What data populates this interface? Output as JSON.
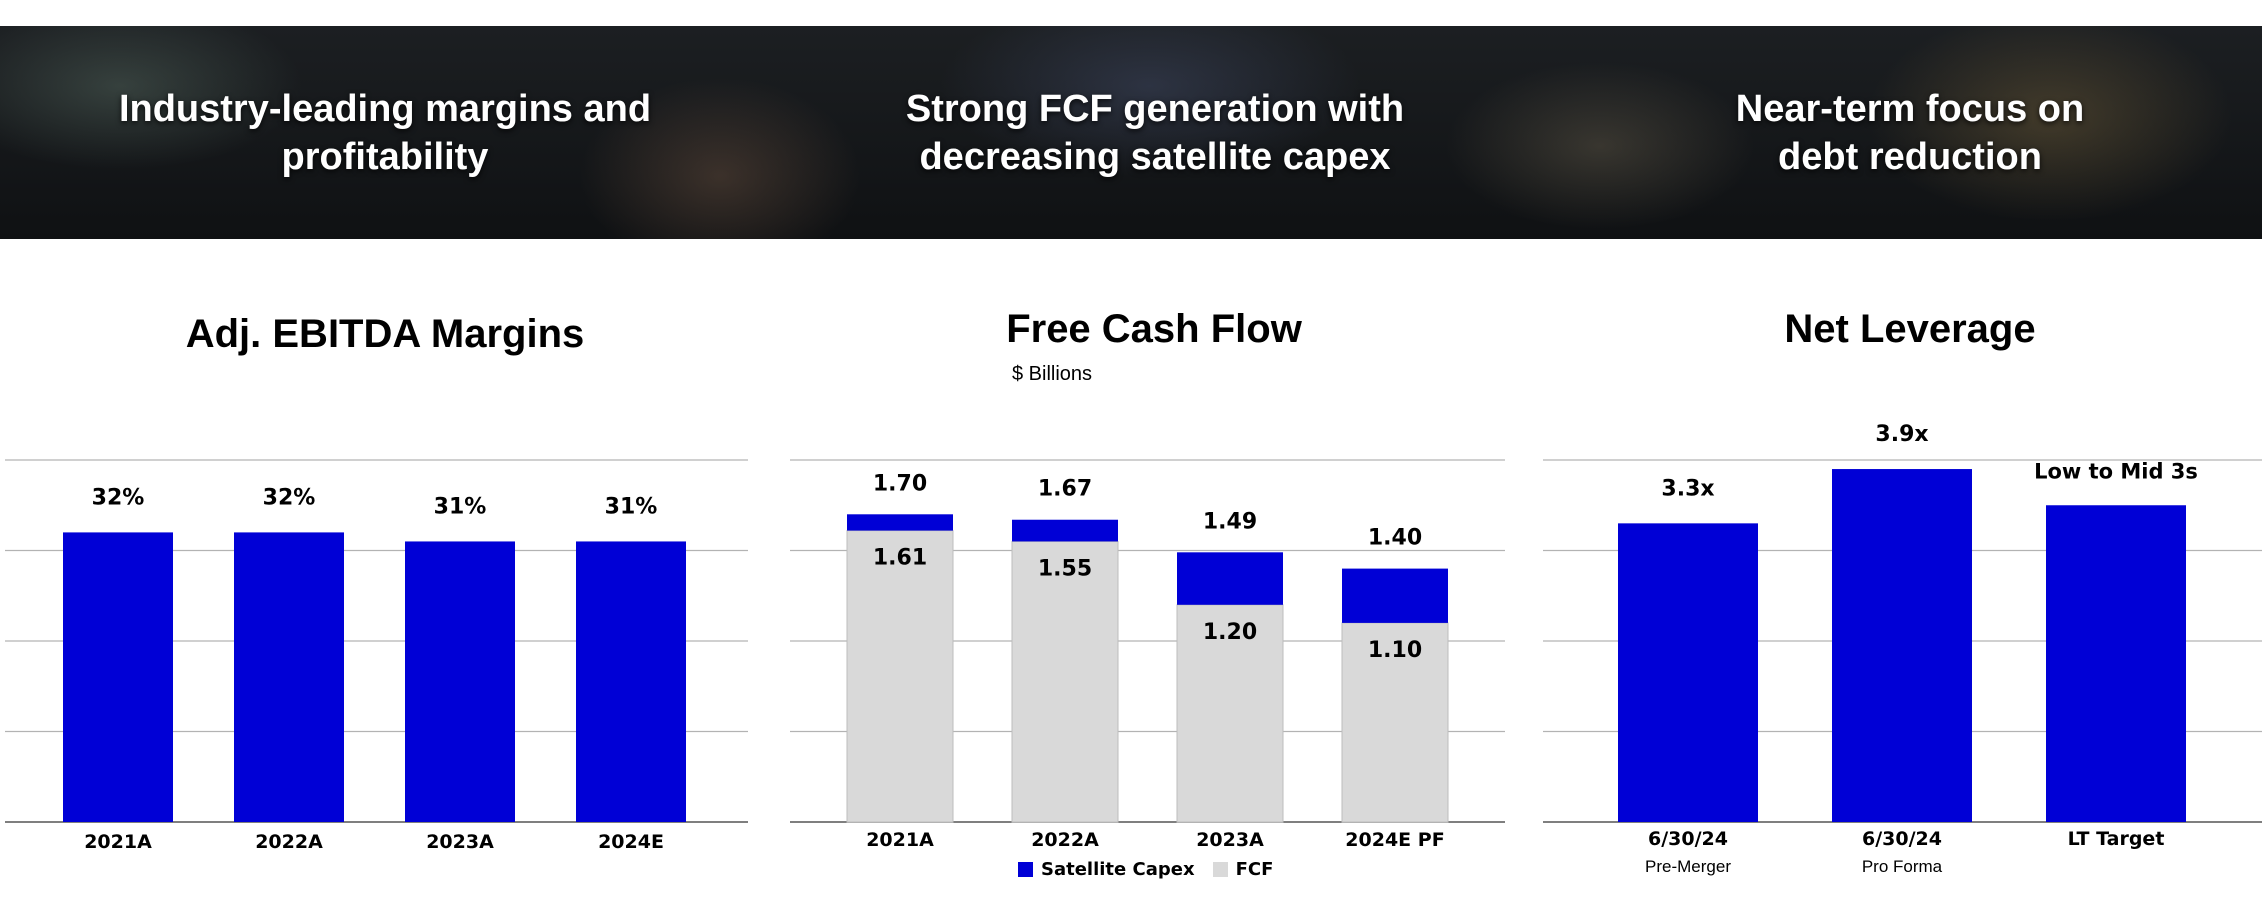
{
  "banner": {
    "items": [
      "Industry-leading margins and\nprofitability",
      "Strong FCF generation with\ndecreasing satellite capex",
      "Near-term focus on\ndebt reduction"
    ]
  },
  "colors": {
    "blue": "#0000d6",
    "gray": "#d9d9d9",
    "grid": "#b3b3b3",
    "axis": "#555555"
  },
  "chart_data": [
    {
      "type": "bar",
      "title": "Adj. EBITDA Margins",
      "categories": [
        "2021A",
        "2022A",
        "2023A",
        "2024E"
      ],
      "values": [
        32,
        32,
        31,
        31
      ],
      "labels": [
        "32%",
        "32%",
        "31%",
        "31%"
      ],
      "unit": "%",
      "ylim": [
        0,
        40
      ],
      "grid": true
    },
    {
      "type": "bar",
      "stacked": true,
      "title": "Free Cash Flow",
      "subtitle": "$ Billions",
      "categories": [
        "2021A",
        "2022A",
        "2023A",
        "2024E PF"
      ],
      "series": [
        {
          "name": "FCF",
          "values": [
            1.61,
            1.55,
            1.2,
            1.1
          ]
        },
        {
          "name": "Satellite Capex",
          "values": [
            0.09,
            0.12,
            0.29,
            0.3
          ]
        }
      ],
      "totals": [
        1.7,
        1.67,
        1.49,
        1.4
      ],
      "fcf_labels": [
        "1.61",
        "1.55",
        "1.20",
        "1.10"
      ],
      "total_labels": [
        "1.70",
        "1.67",
        "1.49",
        "1.40"
      ],
      "legend": [
        "Satellite Capex",
        "FCF"
      ],
      "ylim": [
        0,
        2.0
      ],
      "grid": true
    },
    {
      "type": "bar",
      "title": "Net Leverage",
      "categories": [
        "6/30/24",
        "6/30/24",
        "LT Target"
      ],
      "sublabels": [
        "Pre-Merger",
        "Pro Forma",
        ""
      ],
      "values": [
        3.3,
        3.9,
        3.5
      ],
      "labels": [
        "3.3x",
        "3.9x",
        "Low to Mid 3s"
      ],
      "ylim": [
        0,
        4.0
      ],
      "grid": true
    }
  ]
}
